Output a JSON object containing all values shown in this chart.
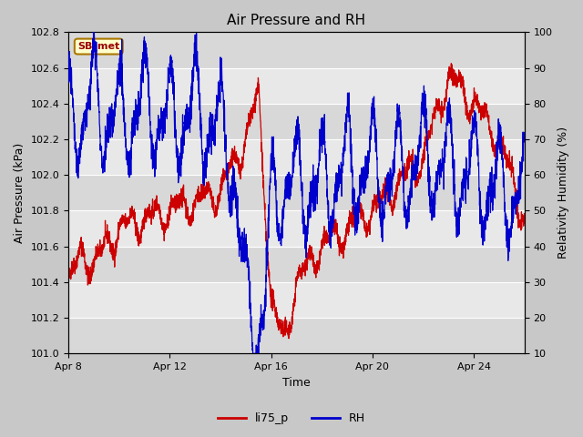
{
  "title": "Air Pressure and RH",
  "xlabel": "Time",
  "ylabel_left": "Air Pressure (kPa)",
  "ylabel_right": "Relativity Humidity (%)",
  "label_box": "SB_met",
  "ylim_left": [
    101.0,
    102.8
  ],
  "ylim_right": [
    10,
    100
  ],
  "yticks_left": [
    101.0,
    101.2,
    101.4,
    101.6,
    101.8,
    102.0,
    102.2,
    102.4,
    102.6,
    102.8
  ],
  "yticks_right": [
    10,
    20,
    30,
    40,
    50,
    60,
    70,
    80,
    90,
    100
  ],
  "xtick_positions": [
    0,
    4,
    8,
    12,
    16
  ],
  "xtick_labels": [
    "Apr 8",
    "Apr 12",
    "Apr 16",
    "Apr 20",
    "Apr 24"
  ],
  "legend_labels": [
    "li75_p",
    "RH"
  ],
  "legend_colors": [
    "#cc0000",
    "#0000cc"
  ],
  "line_color_pressure": "#cc0000",
  "line_color_rh": "#0000cc",
  "background_color": "#c8c8c8",
  "plot_bg_color": "#e0e0e0",
  "label_box_bg": "#ffffcc",
  "label_box_border": "#aa7700",
  "label_box_text_color": "#990000",
  "grid_color": "#ffffff",
  "n_days": 18,
  "xlim": [
    0,
    18
  ],
  "seed": 42
}
